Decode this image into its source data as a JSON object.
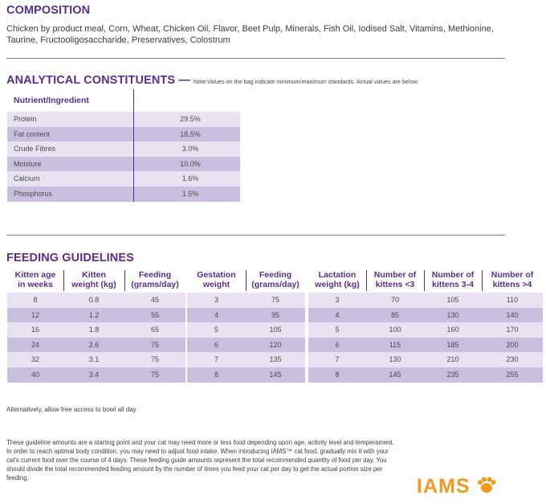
{
  "composition": {
    "heading": "COMPOSITION",
    "text": "Chicken by product meal, Corn, Wheat, Chicken Oil, Flavor, Beet Pulp, Minerals, Fish Oil, Iodised Salt, Vitamins, Methionine, Taurine, Fructooligosaccharide, Preservatives, Colostrum"
  },
  "analytical": {
    "heading": "ANALYTICAL CONSTITUENTS",
    "note": "Note:Values on the bag indicate minimum/maximum standards. Actual values are below:",
    "column_header": "Nutrient/Ingredient",
    "rows": [
      {
        "name": "Protein",
        "value": "29.5%"
      },
      {
        "name": "Fat content",
        "value": "18.5%"
      },
      {
        "name": "Crude Fibres",
        "value": "3.0%"
      },
      {
        "name": "Moisture",
        "value": "10.0%"
      },
      {
        "name": "Calcium",
        "value": "1.6%"
      },
      {
        "name": "Phosphorus",
        "value": "1.5%"
      }
    ]
  },
  "feeding": {
    "heading": "FEEDING GUIDELINES",
    "kitten": {
      "headers": [
        "Kitten age\nin weeks",
        "Kitten\nweight (kg)",
        "Feeding\n(grams/day)"
      ],
      "rows": [
        [
          "8",
          "0.8",
          "45"
        ],
        [
          "12",
          "1.2",
          "55"
        ],
        [
          "16",
          "1.8",
          "65"
        ],
        [
          "24",
          "2.6",
          "75"
        ],
        [
          "32",
          "3.1",
          "75"
        ],
        [
          "40",
          "3.4",
          "75"
        ]
      ]
    },
    "gestation": {
      "headers": [
        "Gestation\nweight",
        "Feeding\n(grams/day)"
      ],
      "rows": [
        [
          "3",
          "75"
        ],
        [
          "4",
          "95"
        ],
        [
          "5",
          "105"
        ],
        [
          "6",
          "120"
        ],
        [
          "7",
          "135"
        ],
        [
          "8",
          "145"
        ]
      ]
    },
    "lactation": {
      "headers": [
        "Lactation\nweight (kg)",
        "Number of\nkittens <3",
        "Number of\nkittens 3-4",
        "Number of\nkittens >4"
      ],
      "rows": [
        [
          "3",
          "70",
          "105",
          "110"
        ],
        [
          "4",
          "85",
          "130",
          "140"
        ],
        [
          "5",
          "100",
          "160",
          "170"
        ],
        [
          "6",
          "115",
          "185",
          "200"
        ],
        [
          "7",
          "130",
          "210",
          "230"
        ],
        [
          "8",
          "145",
          "235",
          "255"
        ]
      ]
    },
    "alternative": "Alternatively, allow free access to bowl all day",
    "guideline_note": "These guideline amounts are a starting point and your cat may need more or less food depending upon age, activity level and temperament. In order to reach optimal body condition, you may need to adjust food intake. When introducing IAMS™ cat food, gradually mix it with your cat's current food over the course of 4 days. These feeding guide amounts represent the total recommended quantity of food per day. You should divide the total recommended feeding amount by the number of times you feed your cat per day to get the actual portion size per feeding."
  },
  "brand": {
    "logo_text": "IAMS",
    "color": "#f29a1f",
    "accent": "#5b2d8e",
    "icon": "paw-icon"
  }
}
